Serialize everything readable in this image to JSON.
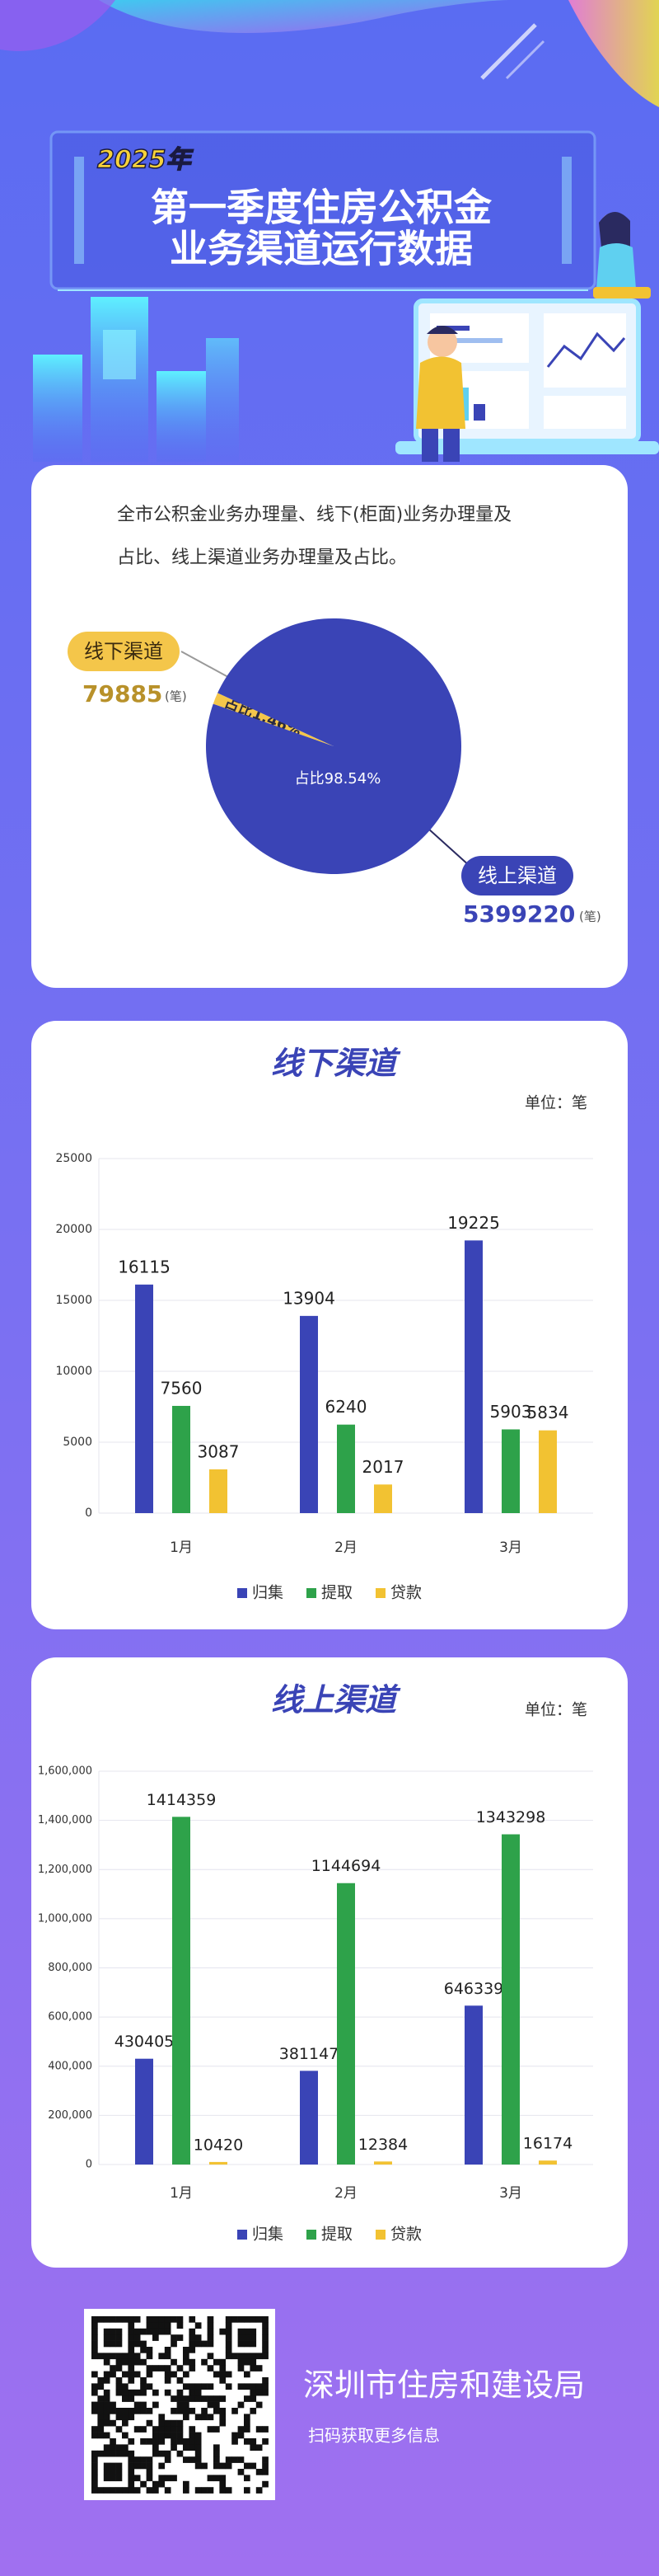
{
  "header": {
    "year": "2025年",
    "title_lines": [
      "第一季度住房公积金",
      "业务渠道运行数据"
    ]
  },
  "chart_data": [
    {
      "type": "pie",
      "description_lines": [
        "全市公积金业务办理量、线下(柜面)业务办理量及",
        "占比、线上渠道业务办理量及占比。"
      ],
      "categories": [
        "线下渠道",
        "线上渠道"
      ],
      "values": [
        1.46,
        98.54
      ],
      "value_labels": [
        "占比1.46%",
        "占比98.54%"
      ],
      "amounts": [
        79885,
        5399220
      ],
      "amount_unit": "(笔)",
      "colors": [
        "#f4c64a",
        "#3a44b6"
      ]
    },
    {
      "type": "bar",
      "title": "线下渠道",
      "unit_label": "单位：笔",
      "categories": [
        "1月",
        "2月",
        "3月"
      ],
      "series": [
        {
          "name": "归集",
          "color": "#3a44b6",
          "values": [
            16115,
            13904,
            19225
          ]
        },
        {
          "name": "提取",
          "color": "#2ea24a",
          "values": [
            7560,
            6240,
            5903
          ]
        },
        {
          "name": "贷款",
          "color": "#f2c232",
          "values": [
            3087,
            2017,
            5834
          ]
        }
      ],
      "ylim": [
        0,
        25000
      ],
      "yticks": [
        0,
        5000,
        10000,
        15000,
        20000,
        25000
      ],
      "grid": true
    },
    {
      "type": "bar",
      "title": "线上渠道",
      "unit_label": "单位：笔",
      "categories": [
        "1月",
        "2月",
        "3月"
      ],
      "series": [
        {
          "name": "归集",
          "color": "#3a44b6",
          "values": [
            430405,
            381147,
            646339
          ]
        },
        {
          "name": "提取",
          "color": "#2ea24a",
          "values": [
            1414359,
            1144694,
            1343298
          ]
        },
        {
          "name": "贷款",
          "color": "#f2c232",
          "values": [
            10420,
            12384,
            16174
          ]
        }
      ],
      "ylim": [
        0,
        1600000
      ],
      "yticks": [
        0,
        {
          "value": 200000,
          "label": "200,000"
        },
        {
          "value": 400000,
          "label": "400,000"
        },
        {
          "value": 600000,
          "label": "600,000"
        },
        {
          "value": 800000,
          "label": "800,000"
        },
        {
          "value": 1000000,
          "label": "1,000,000"
        },
        {
          "value": 1200000,
          "label": "1,200,000"
        },
        {
          "value": 1400000,
          "label": "1,400,000"
        },
        {
          "value": 1600000,
          "label": "1,600,000"
        }
      ],
      "grid": true
    }
  ],
  "footer": {
    "org": "深圳市住房和建设局",
    "hint": "扫码获取更多信息"
  }
}
